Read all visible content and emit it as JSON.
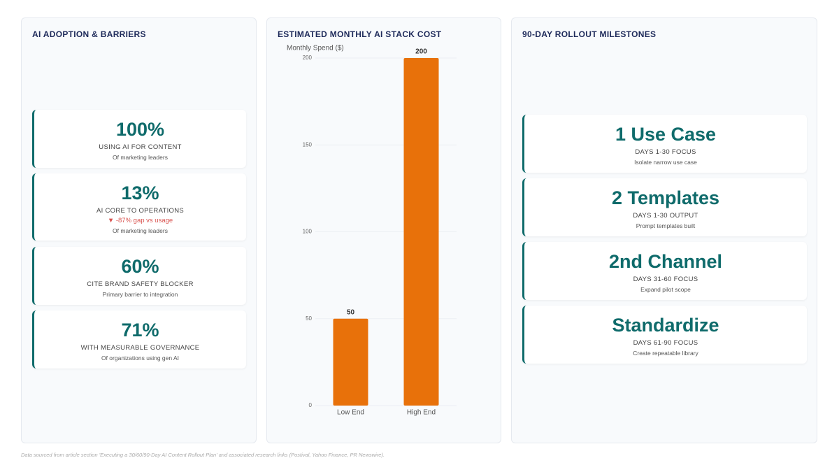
{
  "adoption": {
    "title": "AI ADOPTION & BARRIERS",
    "cards": [
      {
        "value": "100%",
        "label": "USING AI FOR CONTENT",
        "note": "Of marketing leaders"
      },
      {
        "value": "13%",
        "label": "AI CORE TO OPERATIONS",
        "delta": "▼ -87% gap vs usage",
        "note": "Of marketing leaders"
      },
      {
        "value": "60%",
        "label": "CITE BRAND SAFETY BLOCKER",
        "note": "Primary barrier to integration"
      },
      {
        "value": "71%",
        "label": "WITH MEASURABLE GOVERNANCE",
        "note": "Of organizations using gen AI"
      }
    ]
  },
  "chart_data": {
    "type": "bar",
    "title": "ESTIMATED MONTHLY AI STACK COST",
    "y_label": "Monthly Spend ($)",
    "categories": [
      "Low End",
      "High End"
    ],
    "values": [
      50,
      200
    ],
    "color": "#e8710a",
    "ylim": [
      0,
      200
    ],
    "yticks": [
      0,
      50,
      100,
      150,
      200
    ],
    "grid": true
  },
  "milestones": {
    "title": "90-DAY ROLLOUT MILESTONES",
    "cards": [
      {
        "value": "1 Use Case",
        "label": "DAYS 1-30 FOCUS",
        "note": "Isolate narrow use case"
      },
      {
        "value": "2 Templates",
        "label": "DAYS 1-30 OUTPUT",
        "note": "Prompt templates built"
      },
      {
        "value": "2nd Channel",
        "label": "DAYS 31-60 FOCUS",
        "note": "Expand pilot scope"
      },
      {
        "value": "Standardize",
        "label": "DAYS 61-90 FOCUS",
        "note": "Create repeatable library"
      }
    ]
  },
  "footer": "Data sourced from article section 'Executing a 30/60/90-Day AI Content Rollout Plan' and associated research links (Postival, Yahoo Finance, PR Newswire)."
}
